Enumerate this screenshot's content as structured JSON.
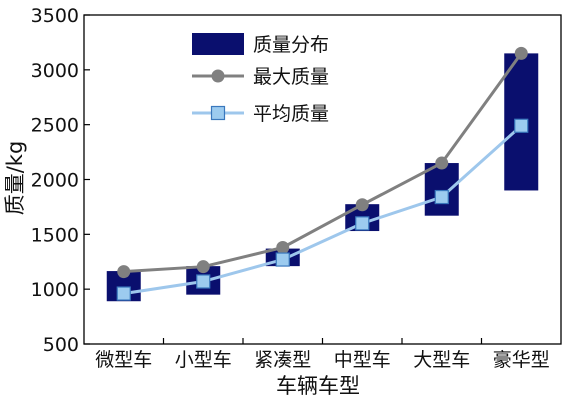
{
  "chart_data": {
    "type": "bar",
    "xlabel": "车辆车型",
    "ylabel": "质量/kg",
    "ylim": [
      500,
      3500
    ],
    "yticks": [
      "3500",
      "3000",
      "2500",
      "2000",
      "1500",
      "1000",
      "500"
    ],
    "categories": [
      "微型车",
      "小型车",
      "紧凑型",
      "中型车",
      "大型车",
      "豪华型"
    ],
    "legend_position": "top-left",
    "grid": false,
    "series": [
      {
        "name": "质量分布",
        "kind": "range-bar",
        "color": "#0a0f6e",
        "low": [
          890,
          950,
          1210,
          1530,
          1670,
          1900
        ],
        "high": [
          1165,
          1210,
          1370,
          1775,
          2150,
          3150
        ]
      },
      {
        "name": "最大质量",
        "kind": "line",
        "color": "#808080",
        "values": [
          1160,
          1205,
          1380,
          1770,
          2150,
          3150
        ]
      },
      {
        "name": "平均质量",
        "kind": "line",
        "color": "#9ec7ec",
        "marker_fill": "#9ccbef",
        "marker_stroke": "#3a78bd",
        "values": [
          960,
          1070,
          1270,
          1600,
          1840,
          2490
        ]
      }
    ]
  }
}
